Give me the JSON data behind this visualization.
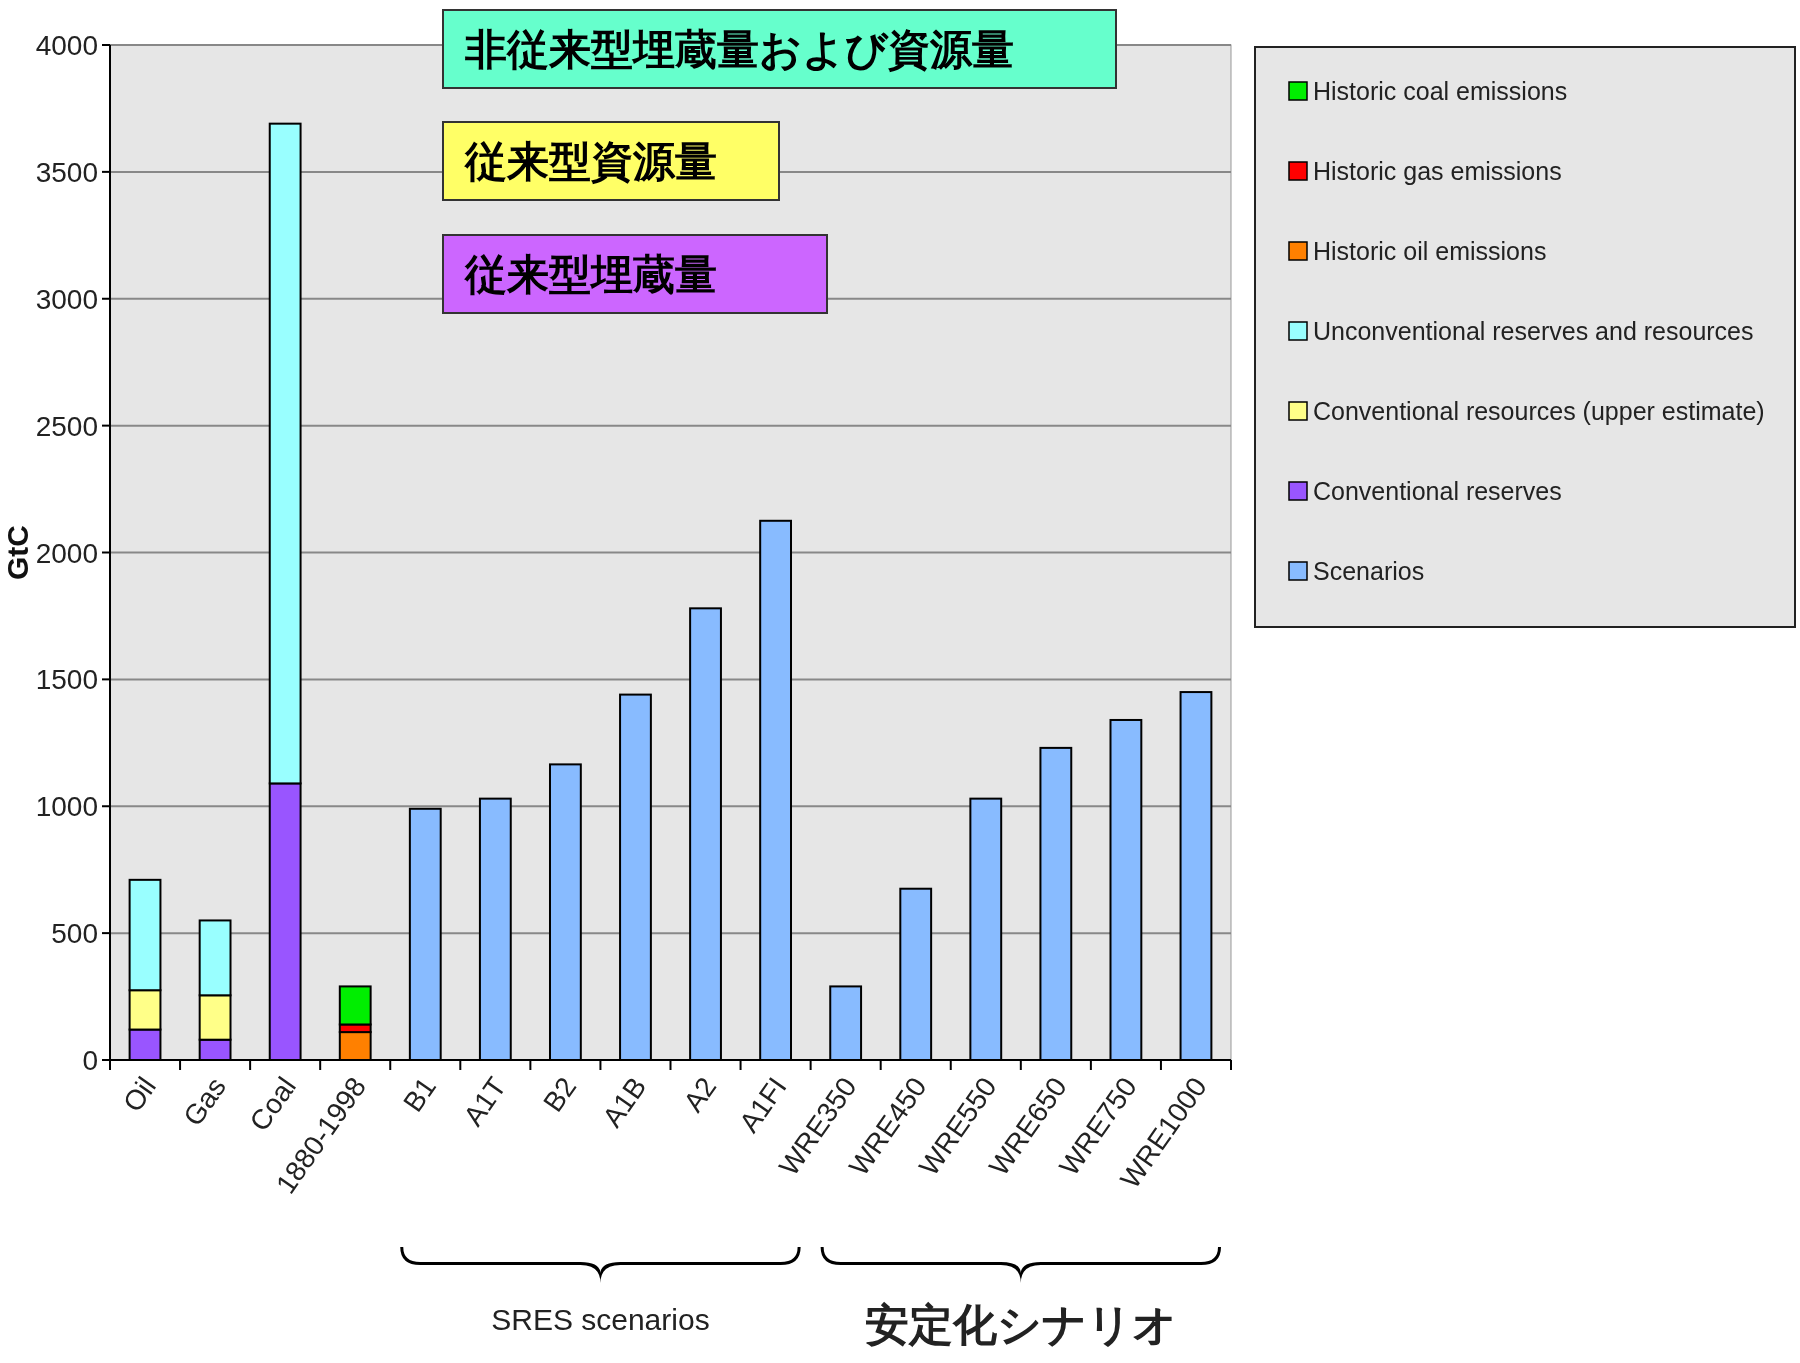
{
  "chart_data": {
    "type": "bar",
    "stacked": true,
    "ylabel": "GtC",
    "categories": [
      "Oil",
      "Gas",
      "Coal",
      "1880-1998",
      "B1",
      "A1T",
      "B2",
      "A1B",
      "A2",
      "A1FI",
      "WRE350",
      "WRE450",
      "WRE550",
      "WRE650",
      "WRE750",
      "WRE1000"
    ],
    "series": [
      {
        "name": "Scenarios",
        "color": "#88bbff",
        "values": [
          null,
          null,
          null,
          null,
          990,
          1030,
          1165,
          1440,
          1780,
          2125,
          290,
          675,
          1030,
          1230,
          1340,
          1450
        ]
      },
      {
        "name": "Conventional reserves",
        "color": "#9955ff",
        "values": [
          120,
          80,
          1090,
          null,
          null,
          null,
          null,
          null,
          null,
          null,
          null,
          null,
          null,
          null,
          null,
          null
        ]
      },
      {
        "name": "Conventional resources (upper estimate)",
        "color": "#ffff88",
        "values": [
          155,
          175,
          null,
          null,
          null,
          null,
          null,
          null,
          null,
          null,
          null,
          null,
          null,
          null,
          null,
          null
        ]
      },
      {
        "name": "Unconventional reserves and resources",
        "color": "#99ffff",
        "values": [
          435,
          295,
          2600,
          null,
          null,
          null,
          null,
          null,
          null,
          null,
          null,
          null,
          null,
          null,
          null,
          null
        ]
      },
      {
        "name": "Historic oil emissions",
        "color": "#ff8000",
        "values": [
          null,
          null,
          null,
          110,
          null,
          null,
          null,
          null,
          null,
          null,
          null,
          null,
          null,
          null,
          null,
          null
        ]
      },
      {
        "name": "Historic gas emissions",
        "color": "#ff0000",
        "values": [
          null,
          null,
          null,
          30,
          null,
          null,
          null,
          null,
          null,
          null,
          null,
          null,
          null,
          null,
          null,
          null
        ]
      },
      {
        "name": "Historic coal emissions",
        "color": "#00ee00",
        "values": [
          null,
          null,
          null,
          150,
          null,
          null,
          null,
          null,
          null,
          null,
          null,
          null,
          null,
          null,
          null,
          null
        ]
      }
    ],
    "ylim": [
      0,
      4000
    ],
    "yticks": [
      0,
      500,
      1000,
      1500,
      2000,
      2500,
      3000,
      3500,
      4000
    ],
    "grid": "y",
    "legend": "top right",
    "annotations": [
      "非従来型埋蔵量および資源量",
      "従来型資源量",
      "従来型埋蔵量",
      "SRES scenarios",
      "安定化シナリオ"
    ]
  }
}
